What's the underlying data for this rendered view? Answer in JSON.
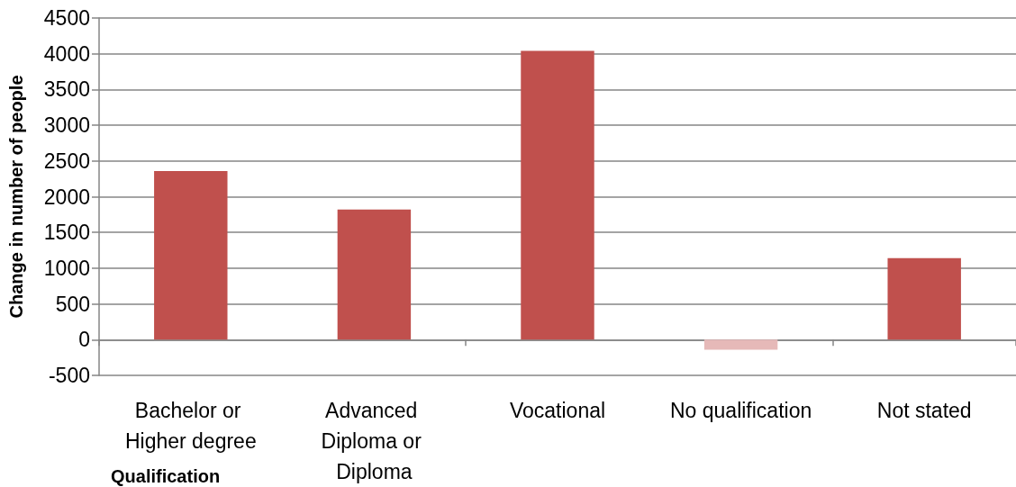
{
  "chart_data": {
    "type": "bar",
    "xlabel": "Qualification",
    "ylabel": "Change in number of people",
    "categories": [
      "Bachelor or Higher degree",
      "Advanced Diploma or Diploma",
      "Vocational",
      "No qualification",
      "Not stated"
    ],
    "values": [
      2360,
      1820,
      4040,
      -140,
      1140
    ],
    "colors": [
      "#c0504d",
      "#c0504d",
      "#c0504d",
      "#e6b9b8",
      "#c0504d"
    ],
    "ylim": [
      -500,
      4500
    ],
    "yticks": [
      -500,
      0,
      500,
      1000,
      1500,
      2000,
      2500,
      3000,
      3500,
      4000,
      4500
    ],
    "grid": "y"
  }
}
